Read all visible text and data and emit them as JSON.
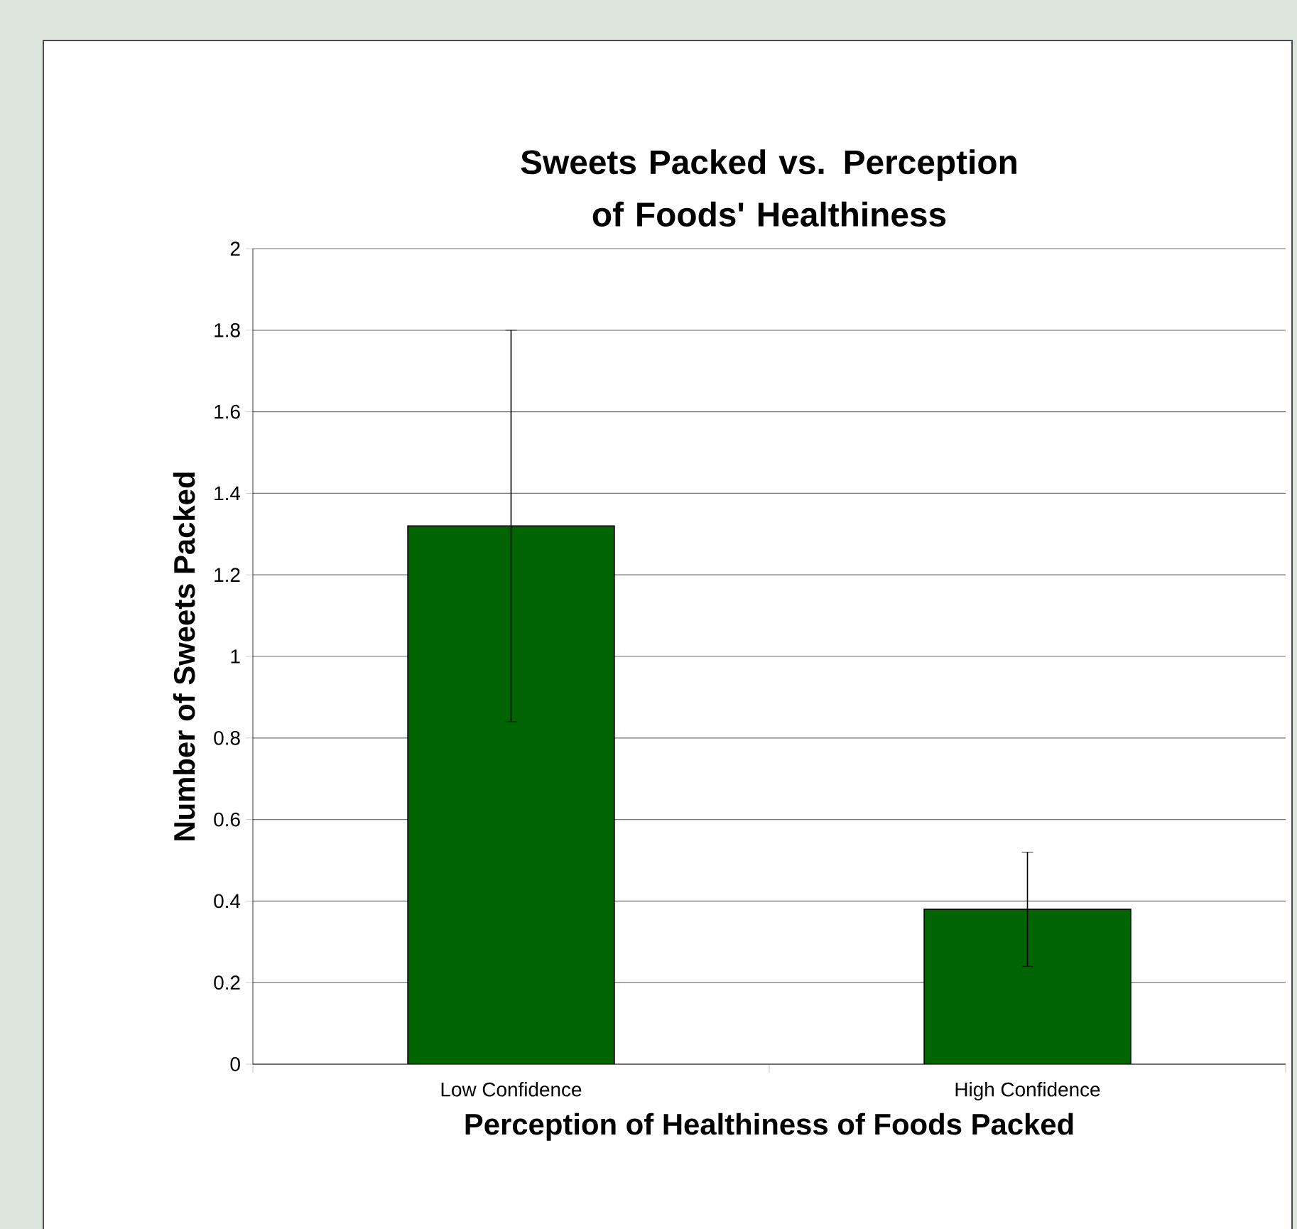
{
  "chart_data": {
    "type": "bar",
    "title": "Sweets Packed vs. Perception of Foods' Healthiness",
    "xlabel": "Perception of Healthiness of Foods Packed",
    "ylabel": "Number of Sweets Packed",
    "categories": [
      "Low Confidence",
      "High Confidence"
    ],
    "values": [
      1.32,
      0.38
    ],
    "errors": [
      0.48,
      0.14
    ],
    "color": "#006400",
    "ylim": [
      0,
      2
    ],
    "yticks": [
      0,
      0.2,
      0.4,
      0.6,
      0.8,
      1,
      1.2,
      1.4,
      1.6,
      1.8,
      2
    ],
    "grid": "y"
  }
}
